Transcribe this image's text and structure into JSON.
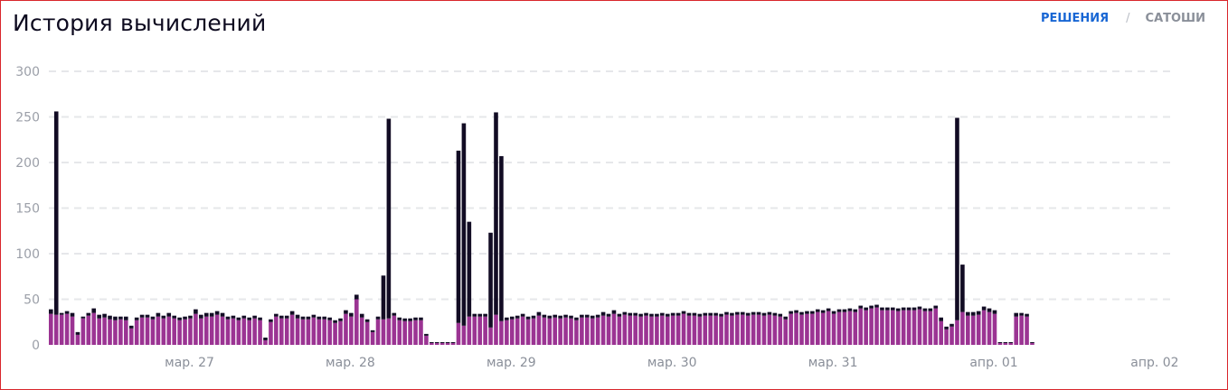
{
  "header": {
    "title": "История вычислений",
    "toggle_active": "РЕШЕНИЯ",
    "toggle_separator": "/",
    "toggle_inactive": "САТОШИ"
  },
  "colors": {
    "primary": "#9b3493",
    "secondary": "#120c24",
    "active_toggle": "#1866d4",
    "grid": "#e6e7ea"
  },
  "chart_data": {
    "type": "bar",
    "stacked": true,
    "ylim": [
      0,
      300
    ],
    "yticks": [
      0,
      50,
      100,
      150,
      200,
      250,
      300
    ],
    "grid": "horizontal dashed",
    "xticks": [
      {
        "label": "мар. 27",
        "index": 11
      },
      {
        "label": "мар. 28",
        "index": 41
      },
      {
        "label": "мар. 29",
        "index": 71
      },
      {
        "label": "мар. 30",
        "index": 101
      },
      {
        "label": "мар. 31",
        "index": 131
      },
      {
        "label": "апр. 01",
        "index": 161
      },
      {
        "label": "апр. 02",
        "index": 191
      }
    ],
    "series": [
      {
        "color": "#9b3493",
        "values": [
          34,
          33,
          33,
          34,
          31,
          11,
          29,
          32,
          35,
          29,
          30,
          28,
          27,
          28,
          27,
          18,
          27,
          30,
          30,
          28,
          31,
          29,
          31,
          29,
          27,
          28,
          29,
          34,
          29,
          31,
          31,
          33,
          31,
          28,
          29,
          27,
          29,
          27,
          29,
          27,
          5,
          25,
          31,
          29,
          29,
          33,
          29,
          28,
          28,
          30,
          28,
          28,
          27,
          24,
          26,
          34,
          31,
          50,
          30,
          25,
          14,
          28,
          28,
          29,
          32,
          27,
          26,
          26,
          27,
          27,
          10,
          2,
          2,
          2,
          2,
          2,
          24,
          21,
          31,
          31,
          31,
          31,
          19,
          33,
          26,
          27,
          28,
          29,
          31,
          28,
          29,
          32,
          30,
          29,
          30,
          29,
          30,
          29,
          27,
          30,
          30,
          29,
          30,
          32,
          31,
          34,
          31,
          33,
          32,
          32,
          31,
          32,
          31,
          31,
          32,
          31,
          32,
          32,
          34,
          32,
          32,
          31,
          32,
          32,
          32,
          31,
          33,
          32,
          33,
          33,
          32,
          33,
          33,
          32,
          33,
          32,
          31,
          28,
          34,
          35,
          33,
          34,
          34,
          36,
          35,
          37,
          34,
          36,
          36,
          37,
          36,
          40,
          38,
          40,
          41,
          38,
          38,
          38,
          37,
          38,
          38,
          38,
          39,
          37,
          37,
          40,
          26,
          17,
          20,
          27,
          36,
          32,
          32,
          33,
          38,
          36,
          34,
          2,
          2,
          2,
          31,
          32,
          31,
          2
        ]
      },
      {
        "color": "#120c24",
        "values": [
          5,
          223,
          2,
          3,
          4,
          3,
          2,
          3,
          5,
          4,
          4,
          4,
          4,
          3,
          4,
          3,
          3,
          3,
          3,
          3,
          4,
          3,
          4,
          3,
          3,
          3,
          3,
          5,
          4,
          4,
          4,
          4,
          4,
          3,
          3,
          3,
          3,
          3,
          3,
          3,
          3,
          3,
          3,
          3,
          3,
          4,
          4,
          3,
          3,
          3,
          3,
          3,
          3,
          3,
          3,
          4,
          4,
          5,
          4,
          3,
          2,
          3,
          48,
          219,
          3,
          3,
          3,
          3,
          3,
          3,
          2,
          1,
          1,
          1,
          1,
          1,
          189,
          222,
          104,
          3,
          3,
          3,
          104,
          222,
          181,
          3,
          3,
          3,
          3,
          3,
          3,
          4,
          3,
          3,
          3,
          3,
          3,
          3,
          3,
          3,
          3,
          3,
          3,
          4,
          3,
          4,
          3,
          3,
          3,
          3,
          3,
          3,
          3,
          3,
          3,
          3,
          3,
          3,
          3,
          3,
          3,
          3,
          3,
          3,
          3,
          3,
          3,
          3,
          3,
          3,
          3,
          3,
          3,
          3,
          3,
          3,
          3,
          3,
          3,
          3,
          3,
          3,
          3,
          3,
          3,
          3,
          3,
          3,
          3,
          3,
          3,
          3,
          3,
          3,
          3,
          3,
          3,
          3,
          3,
          3,
          3,
          3,
          3,
          3,
          3,
          3,
          4,
          3,
          3,
          222,
          52,
          4,
          4,
          4,
          4,
          4,
          4,
          1,
          1,
          1,
          4,
          3,
          3,
          1
        ]
      }
    ]
  }
}
